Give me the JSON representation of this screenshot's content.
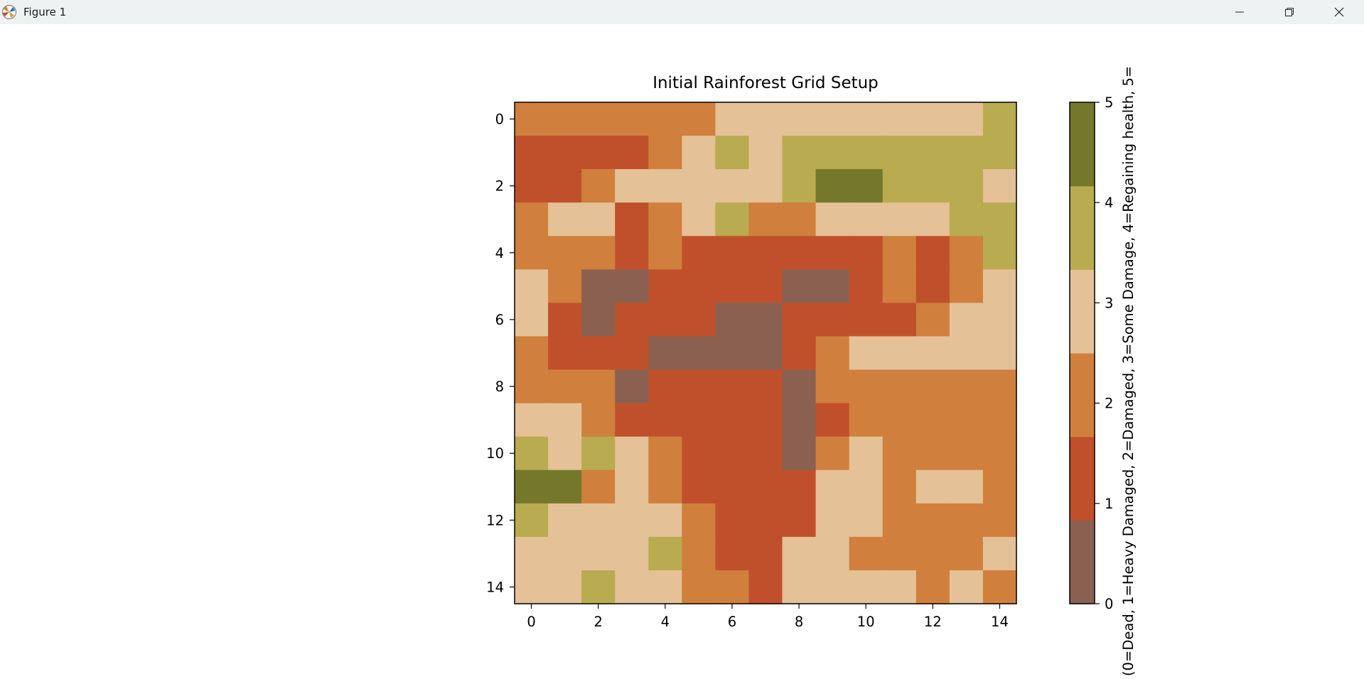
{
  "window": {
    "title": "Figure 1"
  },
  "icons": {
    "app": "matplotlib-icon",
    "minimize": "minimize-icon",
    "maximize": "restore-icon",
    "close": "close-icon"
  },
  "chart_data": {
    "type": "heatmap",
    "title": "Initial Rainforest Grid Setup",
    "x_ticks": [
      "0",
      "2",
      "4",
      "6",
      "8",
      "10",
      "12",
      "14"
    ],
    "y_ticks": [
      "0",
      "2",
      "4",
      "6",
      "8",
      "10",
      "12",
      "14"
    ],
    "colorbar": {
      "label": "(0=Dead, 1=Heavy Damaged, 2=Damaged, 3=Some Damage, 4=Regaining health, 5=",
      "ticks": [
        "0",
        "1",
        "2",
        "3",
        "4",
        "5"
      ],
      "range": [
        0,
        5
      ]
    },
    "colors": [
      "#8a6150",
      "#c0502b",
      "#d0803c",
      "#e4c197",
      "#b9ab4f",
      "#75782b"
    ],
    "grid": [
      [
        2,
        2,
        2,
        2,
        2,
        2,
        3,
        3,
        3,
        3,
        3,
        3,
        3,
        3,
        4
      ],
      [
        1,
        1,
        1,
        1,
        2,
        3,
        4,
        3,
        4,
        4,
        4,
        4,
        4,
        4,
        4
      ],
      [
        1,
        1,
        2,
        3,
        3,
        3,
        3,
        3,
        4,
        5,
        5,
        4,
        4,
        4,
        3
      ],
      [
        2,
        3,
        3,
        1,
        2,
        3,
        4,
        2,
        2,
        3,
        3,
        3,
        3,
        4,
        4
      ],
      [
        2,
        2,
        2,
        1,
        2,
        1,
        1,
        1,
        1,
        1,
        1,
        2,
        1,
        2,
        4
      ],
      [
        3,
        2,
        0,
        0,
        1,
        1,
        1,
        1,
        0,
        0,
        1,
        2,
        1,
        2,
        3
      ],
      [
        3,
        1,
        0,
        1,
        1,
        1,
        0,
        0,
        1,
        1,
        1,
        1,
        2,
        3,
        3
      ],
      [
        2,
        1,
        1,
        1,
        0,
        0,
        0,
        0,
        1,
        2,
        3,
        3,
        3,
        3,
        3
      ],
      [
        2,
        2,
        2,
        0,
        1,
        1,
        1,
        1,
        0,
        2,
        2,
        2,
        2,
        2,
        2
      ],
      [
        3,
        3,
        2,
        1,
        1,
        1,
        1,
        1,
        0,
        1,
        2,
        2,
        2,
        2,
        2
      ],
      [
        4,
        3,
        4,
        3,
        2,
        1,
        1,
        1,
        0,
        2,
        3,
        2,
        2,
        2,
        2
      ],
      [
        5,
        5,
        2,
        3,
        2,
        1,
        1,
        1,
        1,
        3,
        3,
        2,
        3,
        3,
        2
      ],
      [
        4,
        3,
        3,
        3,
        3,
        2,
        1,
        1,
        1,
        3,
        3,
        2,
        2,
        2,
        2
      ],
      [
        3,
        3,
        3,
        3,
        4,
        2,
        1,
        1,
        3,
        3,
        2,
        2,
        2,
        2,
        3
      ],
      [
        3,
        3,
        4,
        3,
        3,
        2,
        2,
        1,
        3,
        3,
        3,
        3,
        2,
        3,
        2
      ]
    ]
  }
}
